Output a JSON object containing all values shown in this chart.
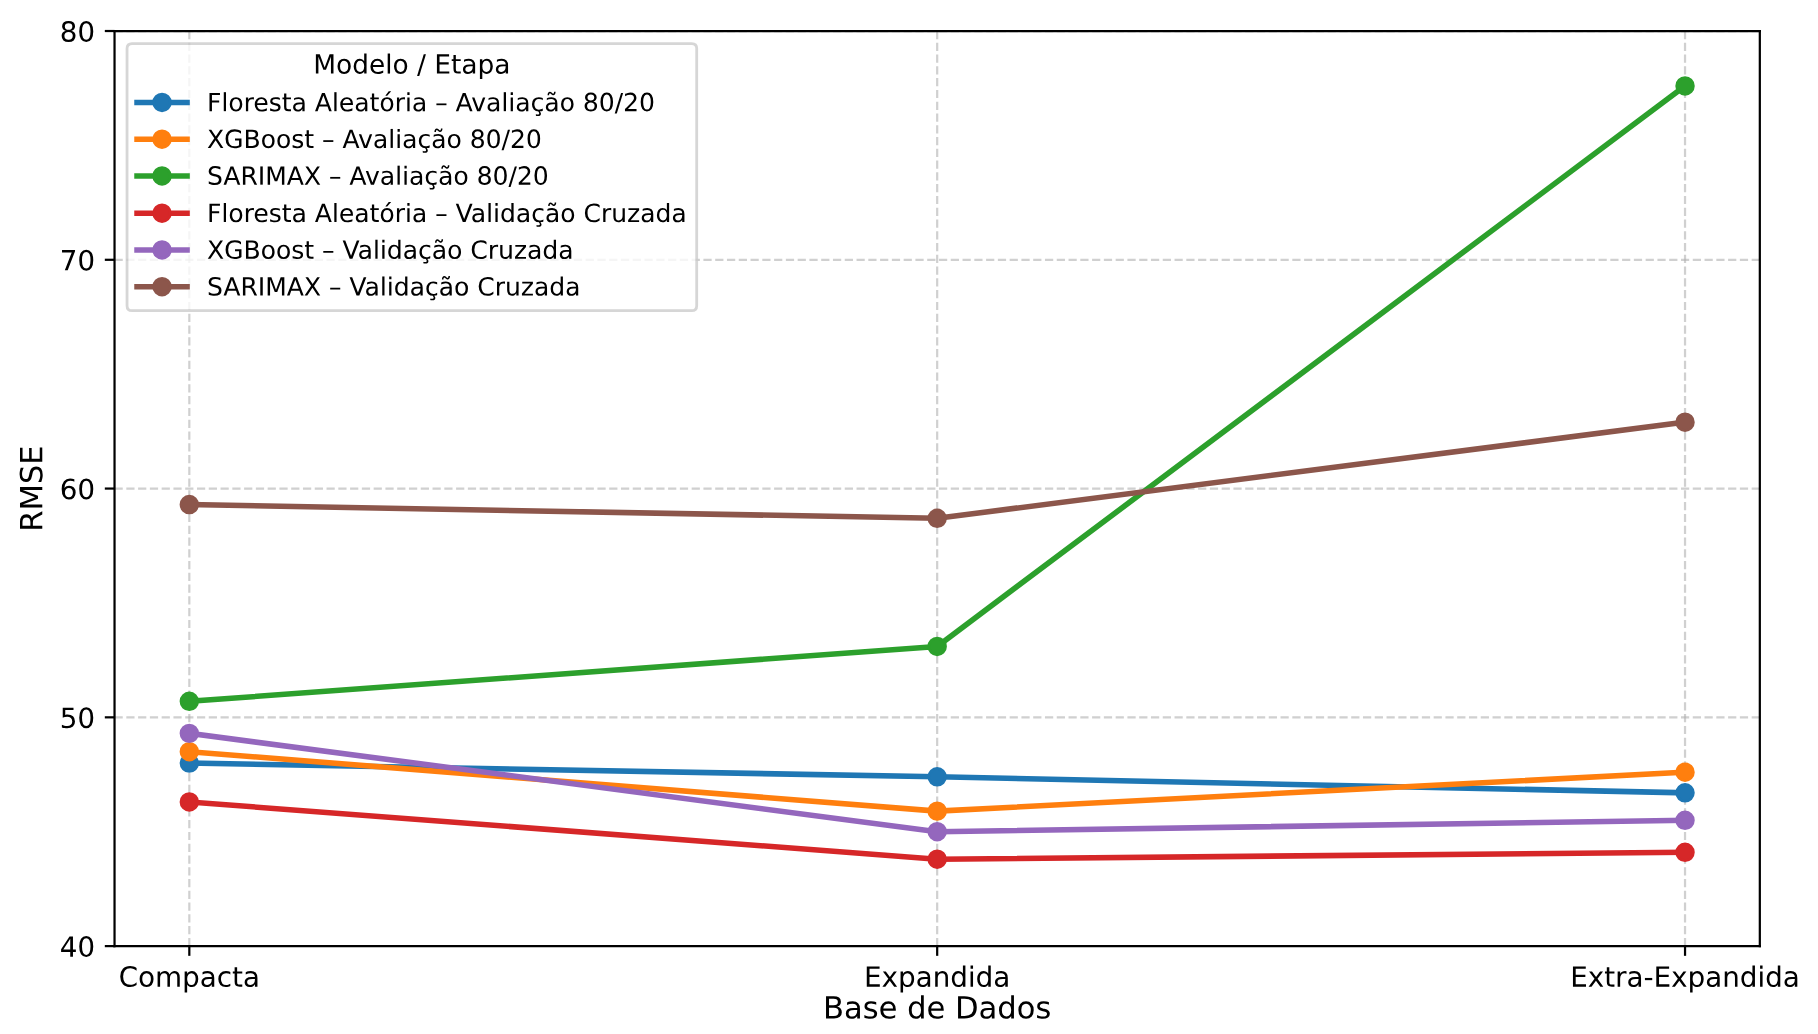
{
  "chart_data": {
    "type": "line",
    "xlabel": "Base de Dados",
    "ylabel": "RMSE",
    "legend_title": "Modelo / Etapa",
    "categories": [
      "Compacta",
      "Expandida",
      "Extra-Expandida"
    ],
    "series": [
      {
        "name": "Floresta Aleatória – Avaliação 80/20",
        "color": "#1f77b4",
        "values": [
          48.0,
          47.4,
          46.7
        ]
      },
      {
        "name": "XGBoost – Avaliação 80/20",
        "color": "#ff7f0e",
        "values": [
          48.5,
          45.9,
          47.6
        ]
      },
      {
        "name": "SARIMAX – Avaliação 80/20",
        "color": "#2ca02c",
        "values": [
          50.7,
          53.1,
          77.6
        ]
      },
      {
        "name": "Floresta Aleatória – Validação Cruzada",
        "color": "#d62728",
        "values": [
          46.3,
          43.8,
          44.1
        ]
      },
      {
        "name": "XGBoost – Validação Cruzada",
        "color": "#9467bd",
        "values": [
          49.3,
          45.0,
          45.5
        ]
      },
      {
        "name": "SARIMAX – Validação Cruzada",
        "color": "#8c564b",
        "values": [
          59.3,
          58.7,
          62.9
        ]
      }
    ],
    "ylim": [
      40,
      80
    ],
    "yticks": [
      40,
      50,
      60,
      70,
      80
    ],
    "grid": true,
    "legend": "top left",
    "marker": "circle",
    "line_style": "solid"
  }
}
